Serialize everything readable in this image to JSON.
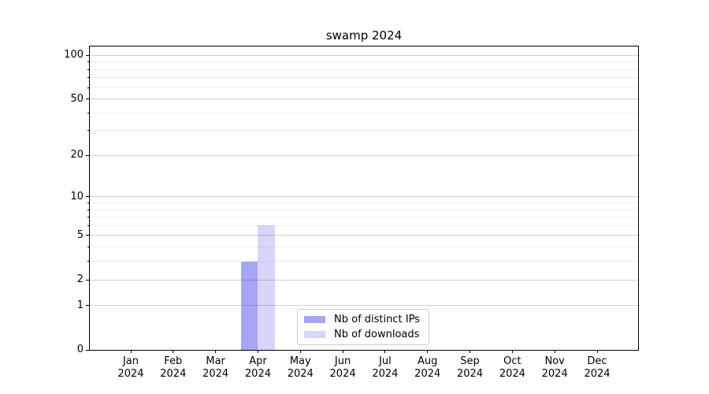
{
  "chart_data": {
    "type": "bar",
    "title": "swamp 2024",
    "categories": [
      "Jan",
      "Feb",
      "Mar",
      "Apr",
      "May",
      "Jun",
      "Jul",
      "Aug",
      "Sep",
      "Oct",
      "Nov",
      "Dec"
    ],
    "category_year": "2024",
    "series": [
      {
        "name": "Nb of distinct IPs",
        "color": "rgba(0,0,230,0.35)",
        "values": [
          0,
          0,
          0,
          3,
          0,
          0,
          0,
          0,
          0,
          0,
          0,
          0
        ]
      },
      {
        "name": "Nb of downloads",
        "color": "rgba(0,0,230,0.16)",
        "values": [
          0,
          0,
          0,
          6,
          0,
          0,
          0,
          0,
          0,
          0,
          0,
          0
        ]
      }
    ],
    "yscale": "log1p",
    "ylim": [
      0,
      115
    ],
    "y_major_ticks": [
      0,
      1,
      2,
      5,
      10,
      20,
      50,
      100
    ],
    "y_minor_ticks": [
      3,
      4,
      6,
      7,
      8,
      9,
      30,
      40,
      60,
      70,
      80,
      90
    ],
    "grid": true,
    "legend_position": "lower-center",
    "colors": {
      "major_grid": "#d0d0d0",
      "minor_grid": "#ededed",
      "axis": "#000000",
      "background": "#ffffff"
    }
  }
}
